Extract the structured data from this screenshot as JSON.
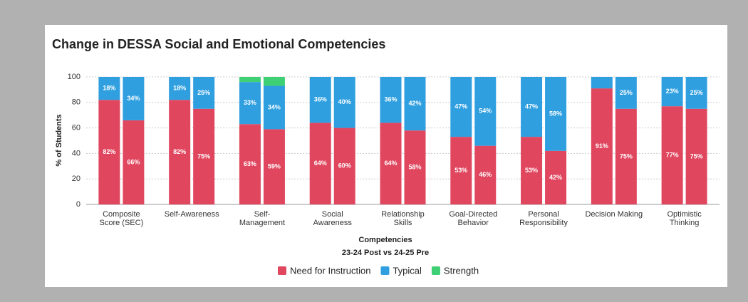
{
  "chart_data": {
    "type": "stacked-bar",
    "title": "Change in DESSA Social and Emotional Competencies",
    "subtitle": "23-24 Post vs 24-25 Pre",
    "x_label": "Competencies",
    "y_label": "% of Students",
    "categories": [
      "Composite Score (SEC)",
      "Self-Awareness",
      "Self-Management",
      "Social Awareness",
      "Relationship Skills",
      "Goal-Directed Behavior",
      "Personal Responsibility",
      "Decision Making",
      "Optimistic Thinking"
    ],
    "series": [
      {
        "name": "Need for Instruction",
        "color": "#e0475f",
        "values": [
          [
            82,
            66
          ],
          [
            82,
            75
          ],
          [
            63,
            59
          ],
          [
            64,
            60
          ],
          [
            64,
            58
          ],
          [
            53,
            46
          ],
          [
            53,
            42
          ],
          [
            91,
            75
          ],
          [
            77,
            75
          ]
        ],
        "value_labels": [
          [
            "82%",
            "66%"
          ],
          [
            "82%",
            "75%"
          ],
          [
            "63%",
            "59%"
          ],
          [
            "64%",
            "60%"
          ],
          [
            "64%",
            "58%"
          ],
          [
            "53%",
            "46%"
          ],
          [
            "53%",
            "42%"
          ],
          [
            "91%",
            "75%"
          ],
          [
            "77%",
            "75%"
          ]
        ]
      },
      {
        "name": "Typical",
        "color": "#2f9fe0",
        "values": [
          [
            18,
            34
          ],
          [
            18,
            25
          ],
          [
            33,
            34
          ],
          [
            36,
            40
          ],
          [
            36,
            42
          ],
          [
            47,
            54
          ],
          [
            47,
            58
          ],
          [
            9,
            25
          ],
          [
            23,
            25
          ]
        ],
        "value_labels": [
          [
            "18%",
            "34%"
          ],
          [
            "18%",
            "25%"
          ],
          [
            "33%",
            "34%"
          ],
          [
            "36%",
            "40%"
          ],
          [
            "36%",
            "42%"
          ],
          [
            "47%",
            "54%"
          ],
          [
            "47%",
            "58%"
          ],
          [
            null,
            "25%"
          ],
          [
            "23%",
            "25%"
          ]
        ]
      },
      {
        "name": "Strength",
        "color": "#3fcf74",
        "values": [
          [
            0,
            0
          ],
          [
            0,
            0
          ],
          [
            4,
            7
          ],
          [
            0,
            0
          ],
          [
            0,
            0
          ],
          [
            0,
            0
          ],
          [
            0,
            0
          ],
          [
            0,
            0
          ],
          [
            0,
            0
          ]
        ],
        "value_labels": [
          [
            null,
            null
          ],
          [
            null,
            null
          ],
          [
            null,
            null
          ],
          [
            null,
            null
          ],
          [
            null,
            null
          ],
          [
            null,
            null
          ],
          [
            null,
            null
          ],
          [
            null,
            null
          ],
          [
            null,
            null
          ]
        ]
      }
    ],
    "ylim": [
      0,
      100
    ],
    "yticks": [
      0,
      20,
      40,
      60,
      80,
      100
    ],
    "grid": true
  }
}
